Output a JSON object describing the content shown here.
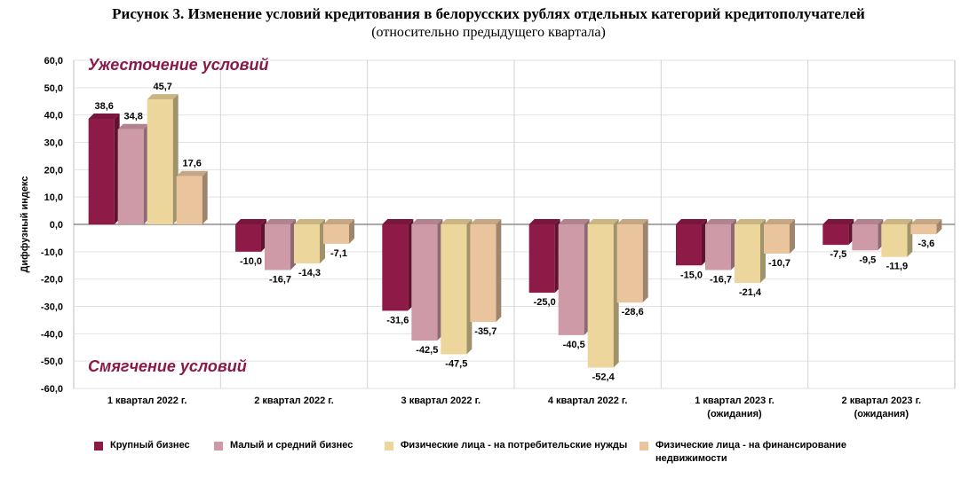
{
  "title": "Рисунок 3. Изменение условий кредитования в белорусских рублях отдельных категорий кредитополучателей",
  "subtitle": "(относительно предыдущего квартала)",
  "chart_data": {
    "type": "bar",
    "ylabel": "Диффузный индекс",
    "ylim": [
      -60,
      60
    ],
    "yticks": [
      "60,0",
      "50,0",
      "40,0",
      "30,0",
      "20,0",
      "10,0",
      "0,0",
      "-10,0",
      "-20,0",
      "-30,0",
      "-40,0",
      "-50,0",
      "-60,0"
    ],
    "grid": true,
    "legend_position": "bottom",
    "categories": [
      [
        "1 квартал 2022 г."
      ],
      [
        "2 квартал 2022 г."
      ],
      [
        "3 квартал 2022 г."
      ],
      [
        "4 квартал 2022 г."
      ],
      [
        "1 квартал 2023 г.",
        "(ожидания)"
      ],
      [
        "2 квартал 2023 г.",
        "(ожидания)"
      ]
    ],
    "annotations": {
      "top": "Ужесточение условий",
      "bottom": "Смягчение условий",
      "color": "#8a1848"
    },
    "series": [
      {
        "name": "Крупный бизнес",
        "color": "#8e1a48",
        "values": [
          38.6,
          -10.0,
          -31.6,
          -25.0,
          -15.0,
          -7.5
        ],
        "labels": [
          "38,6",
          "-10,0",
          "-31,6",
          "-25,0",
          "-15,0",
          "-7,5"
        ]
      },
      {
        "name": "Малый и средний бизнес",
        "color": "#cf9aa8",
        "values": [
          34.8,
          -16.7,
          -42.5,
          -40.5,
          -16.7,
          -9.5
        ],
        "labels": [
          "34,8",
          "-16,7",
          "-42,5",
          "-40,5",
          "-16,7",
          "-9,5"
        ]
      },
      {
        "name": "Физические лица - на потребительские нужды",
        "color": "#ecd69b",
        "values": [
          45.7,
          -14.3,
          -47.5,
          -52.4,
          -21.4,
          -11.9
        ],
        "labels": [
          "45,7",
          "-14,3",
          "-47,5",
          "-52,4",
          "-21,4",
          "-11,9"
        ]
      },
      {
        "name": "Физические лица - на финансирование недвижимости",
        "color": "#e9c49d",
        "values": [
          17.6,
          -7.1,
          -35.7,
          -28.6,
          -10.7,
          -3.6
        ],
        "labels": [
          "17,6",
          "-7,1",
          "-35,7",
          "-28,6",
          "-10,7",
          "-3,6"
        ]
      }
    ]
  }
}
